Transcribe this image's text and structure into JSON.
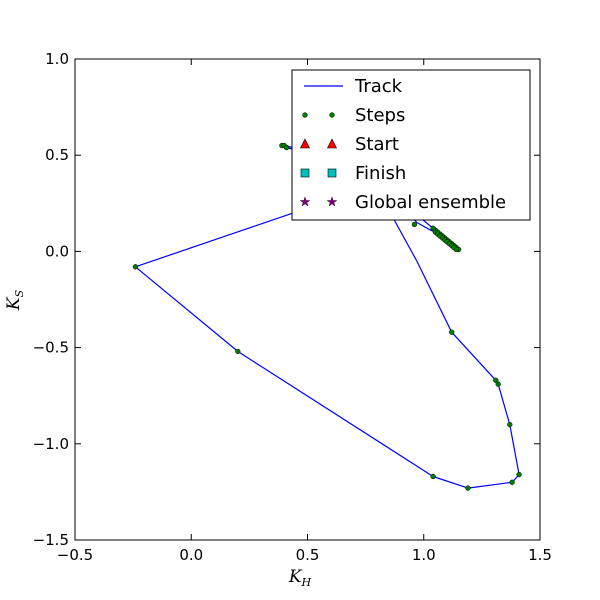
{
  "chart_data": {
    "type": "line",
    "xlabel": "K",
    "xlabel_sub": "H",
    "ylabel": "K",
    "ylabel_sub": "S",
    "xlim": [
      -0.5,
      1.5
    ],
    "ylim": [
      -1.5,
      1.0
    ],
    "xticks": [
      "−0.5",
      "0.0",
      "0.5",
      "1.0",
      "1.5"
    ],
    "yticks": [
      "1.0",
      "0.5",
      "0.0",
      "−0.5",
      "−1.0",
      "−1.5"
    ],
    "grid": false,
    "legend_position": "top-right",
    "legend": [
      "Track",
      "Steps",
      "Start",
      "Finish",
      "Global ensemble"
    ],
    "colors": {
      "track": "#0000ff",
      "steps": "#008000",
      "start": "#ff0000",
      "finish": "#00bfbf",
      "global": "#800080"
    },
    "track": {
      "x": [
        1.15,
        1.14,
        1.13,
        1.12,
        1.11,
        1.1,
        1.09,
        1.08,
        1.07,
        1.06,
        1.05,
        1.04,
        0.96,
        0.84,
        0.7,
        0.55,
        0.39,
        0.41,
        0.62,
        0.56,
        -0.24,
        0.2,
        1.04,
        1.19,
        1.38,
        1.41,
        1.37,
        1.32,
        1.31,
        1.12,
        0.97,
        0.82,
        0.76,
        0.9,
        0.97,
        1.03,
        1.05,
        1.07,
        1.08,
        1.09,
        1.1,
        1.11,
        1.12,
        1.13,
        1.14,
        1.15
      ],
      "y": [
        0.01,
        0.02,
        0.03,
        0.04,
        0.05,
        0.06,
        0.07,
        0.08,
        0.09,
        0.1,
        0.11,
        0.12,
        0.2,
        0.32,
        0.44,
        0.52,
        0.55,
        0.54,
        0.47,
        0.25,
        -0.08,
        -0.52,
        -1.17,
        -1.23,
        -1.2,
        -1.16,
        -0.9,
        -0.69,
        -0.67,
        -0.42,
        -0.05,
        0.28,
        0.36,
        0.25,
        0.15,
        0.11,
        0.1,
        0.09,
        0.08,
        0.07,
        0.06,
        0.05,
        0.04,
        0.03,
        0.02,
        0.01
      ]
    },
    "steps": {
      "x": [
        1.15,
        1.14,
        1.13,
        1.12,
        1.11,
        1.1,
        1.09,
        1.08,
        1.07,
        1.06,
        1.05,
        1.04,
        0.96,
        0.39,
        0.4,
        0.41,
        0.41,
        -0.24,
        0.2,
        1.04,
        1.19,
        1.38,
        1.41,
        1.37,
        1.32,
        1.31,
        1.12,
        1.05,
        1.06,
        1.07,
        1.08,
        1.09,
        1.1,
        1.11,
        1.12,
        1.13,
        1.14
      ],
      "y": [
        0.01,
        0.02,
        0.03,
        0.04,
        0.05,
        0.06,
        0.07,
        0.08,
        0.09,
        0.1,
        0.11,
        0.12,
        0.14,
        0.55,
        0.55,
        0.54,
        0.54,
        -0.08,
        -0.52,
        -1.17,
        -1.23,
        -1.2,
        -1.16,
        -0.9,
        -0.69,
        -0.67,
        -0.42,
        0.1,
        0.09,
        0.08,
        0.07,
        0.06,
        0.05,
        0.04,
        0.03,
        0.02,
        0.01
      ]
    }
  }
}
